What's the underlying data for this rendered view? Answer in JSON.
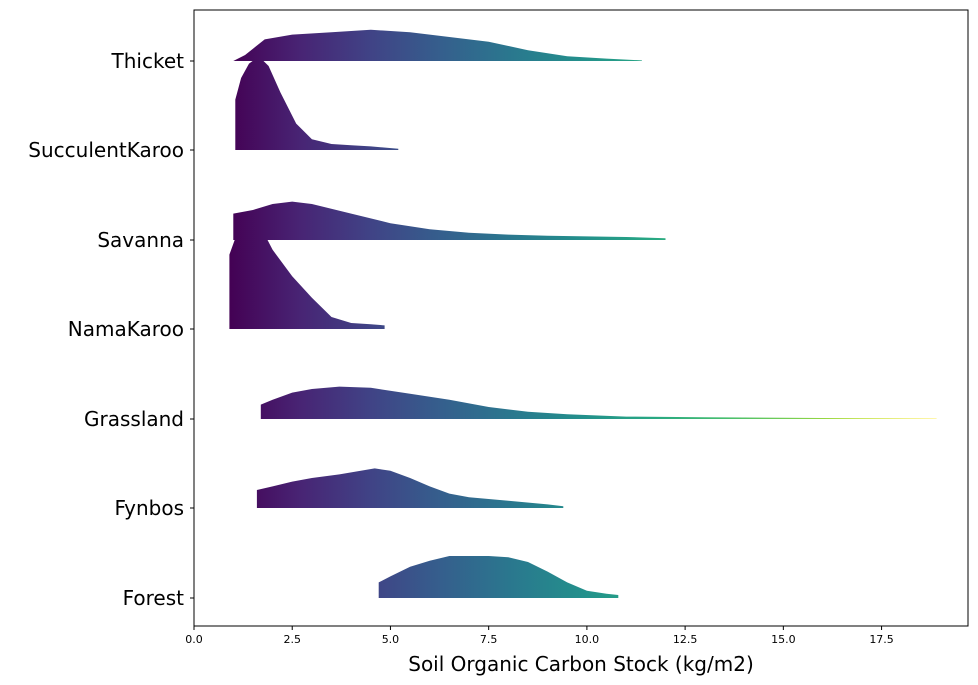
{
  "chart_data": {
    "type": "ridgeline",
    "title": "",
    "xlabel": "Soil Organic Carbon Stock (kg/m2)",
    "ylabel": "",
    "xlim": [
      0,
      19.7
    ],
    "xticks": [
      0.0,
      2.5,
      5.0,
      7.5,
      10.0,
      12.5,
      15.0,
      17.5
    ],
    "xtick_labels": [
      "0.0",
      "2.5",
      "5.0",
      "7.5",
      "10.0",
      "12.5",
      "15.0",
      "17.5"
    ],
    "colormap": "viridis",
    "color_range": [
      0.9,
      18.9
    ],
    "grid": false,
    "legend": "none",
    "categories": [
      "Thicket",
      "SucculentKaroo",
      "Savanna",
      "NamaKaroo",
      "Grassland",
      "Fynbos",
      "Forest"
    ],
    "series": [
      {
        "label": "Thicket",
        "points": [
          [
            1.0,
            0.0
          ],
          [
            1.3,
            0.05
          ],
          [
            1.8,
            0.18
          ],
          [
            2.5,
            0.22
          ],
          [
            3.5,
            0.24
          ],
          [
            4.5,
            0.26
          ],
          [
            5.5,
            0.24
          ],
          [
            6.5,
            0.2
          ],
          [
            7.5,
            0.16
          ],
          [
            8.5,
            0.09
          ],
          [
            9.5,
            0.04
          ],
          [
            10.5,
            0.02
          ],
          [
            11.4,
            0.005
          ]
        ]
      },
      {
        "label": "SucculentKaroo",
        "points": [
          [
            1.05,
            0.42
          ],
          [
            1.2,
            0.6
          ],
          [
            1.4,
            0.72
          ],
          [
            1.65,
            0.78
          ],
          [
            1.9,
            0.7
          ],
          [
            2.2,
            0.48
          ],
          [
            2.6,
            0.22
          ],
          [
            3.0,
            0.09
          ],
          [
            3.5,
            0.05
          ],
          [
            4.0,
            0.04
          ],
          [
            4.5,
            0.03
          ],
          [
            5.2,
            0.01
          ]
        ]
      },
      {
        "label": "Savanna",
        "points": [
          [
            1.0,
            0.22
          ],
          [
            1.5,
            0.25
          ],
          [
            2.0,
            0.3
          ],
          [
            2.5,
            0.32
          ],
          [
            3.0,
            0.3
          ],
          [
            4.0,
            0.22
          ],
          [
            5.0,
            0.14
          ],
          [
            6.0,
            0.09
          ],
          [
            7.0,
            0.06
          ],
          [
            8.0,
            0.045
          ],
          [
            9.0,
            0.035
          ],
          [
            10.0,
            0.03
          ],
          [
            11.0,
            0.025
          ],
          [
            12.0,
            0.015
          ]
        ]
      },
      {
        "label": "NamaKaroo",
        "points": [
          [
            0.9,
            0.62
          ],
          [
            1.1,
            0.8
          ],
          [
            1.4,
            0.95
          ],
          [
            1.7,
            0.85
          ],
          [
            2.0,
            0.66
          ],
          [
            2.5,
            0.44
          ],
          [
            3.0,
            0.26
          ],
          [
            3.5,
            0.1
          ],
          [
            4.0,
            0.05
          ],
          [
            4.5,
            0.04
          ],
          [
            4.85,
            0.03
          ]
        ]
      },
      {
        "label": "Grassland",
        "points": [
          [
            1.7,
            0.12
          ],
          [
            2.0,
            0.16
          ],
          [
            2.5,
            0.22
          ],
          [
            3.0,
            0.25
          ],
          [
            3.7,
            0.27
          ],
          [
            4.5,
            0.26
          ],
          [
            5.5,
            0.21
          ],
          [
            6.5,
            0.16
          ],
          [
            7.5,
            0.1
          ],
          [
            8.5,
            0.06
          ],
          [
            9.5,
            0.04
          ],
          [
            11.0,
            0.02
          ],
          [
            13.0,
            0.015
          ],
          [
            15.0,
            0.01
          ],
          [
            17.0,
            0.006
          ],
          [
            18.9,
            0.003
          ]
        ]
      },
      {
        "label": "Fynbos",
        "points": [
          [
            1.6,
            0.15
          ],
          [
            2.0,
            0.18
          ],
          [
            2.5,
            0.22
          ],
          [
            3.0,
            0.25
          ],
          [
            3.7,
            0.28
          ],
          [
            4.6,
            0.33
          ],
          [
            5.0,
            0.31
          ],
          [
            5.5,
            0.25
          ],
          [
            6.0,
            0.18
          ],
          [
            6.5,
            0.12
          ],
          [
            7.0,
            0.09
          ],
          [
            8.0,
            0.06
          ],
          [
            9.0,
            0.03
          ],
          [
            9.4,
            0.015
          ]
        ]
      },
      {
        "label": "Forest",
        "points": [
          [
            4.7,
            0.13
          ],
          [
            5.0,
            0.18
          ],
          [
            5.5,
            0.26
          ],
          [
            6.0,
            0.31
          ],
          [
            6.5,
            0.35
          ],
          [
            7.0,
            0.35
          ],
          [
            7.5,
            0.35
          ],
          [
            8.0,
            0.34
          ],
          [
            8.5,
            0.3
          ],
          [
            9.0,
            0.22
          ],
          [
            9.5,
            0.13
          ],
          [
            10.0,
            0.06
          ],
          [
            10.5,
            0.035
          ],
          [
            10.8,
            0.025
          ]
        ]
      }
    ]
  }
}
